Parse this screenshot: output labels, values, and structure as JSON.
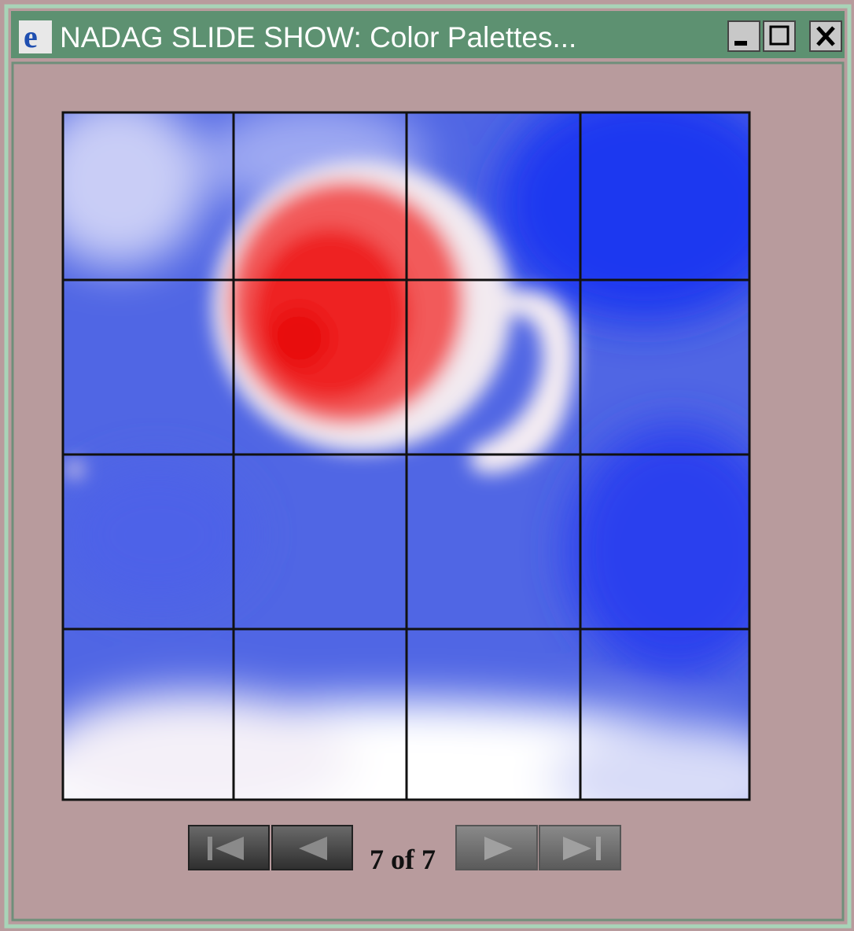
{
  "window": {
    "title": "NADAG SLIDE SHOW: Color Palettes..."
  },
  "navigation": {
    "counter": "7 of 7"
  }
}
